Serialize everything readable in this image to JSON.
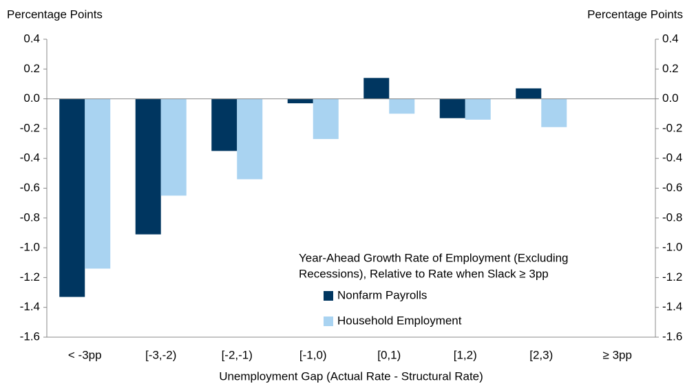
{
  "chart_data": {
    "type": "bar",
    "y_label": "Percentage Points",
    "y2_label": "Percentage Points",
    "x_label": "Unemployment Gap (Actual Rate - Structural Rate)",
    "legend_title": [
      "Year-Ahead Growth Rate of Employment (Excluding",
      "Recessions), Relative to Rate when Slack ≥ 3pp"
    ],
    "categories": [
      "< -3pp",
      "[-3,-2)",
      "[-2,-1)",
      "[-1,0)",
      "[0,1)",
      "[1,2)",
      "[2,3)",
      "≥ 3pp"
    ],
    "series": [
      {
        "name": "Nonfarm Payrolls",
        "color": "#003660",
        "values": [
          -1.33,
          -0.91,
          -0.35,
          -0.03,
          0.14,
          -0.13,
          0.07,
          0
        ]
      },
      {
        "name": "Household Employment",
        "color": "#a9d3f1",
        "values": [
          -1.14,
          -0.65,
          -0.54,
          -0.27,
          -0.1,
          -0.14,
          -0.19,
          0
        ]
      }
    ],
    "ylim": [
      -1.6,
      0.4
    ],
    "yticks": [
      0.4,
      0.2,
      {
        "value": 0,
        "label": "0.0"
      },
      -0.2,
      -0.4,
      -0.6,
      -0.8,
      {
        "value": -1,
        "label": "-1.0"
      },
      -1.2,
      -1.4,
      -1.6
    ],
    "y2lim": [
      -1.6,
      0.4
    ],
    "y2ticks": [
      0.4,
      0.2,
      {
        "value": 0,
        "label": "0.0"
      },
      -0.2,
      -0.4,
      -0.6,
      -0.8,
      {
        "value": -1,
        "label": "-1.0"
      },
      -1.2,
      -1.4,
      -1.6
    ],
    "grid": false
  }
}
